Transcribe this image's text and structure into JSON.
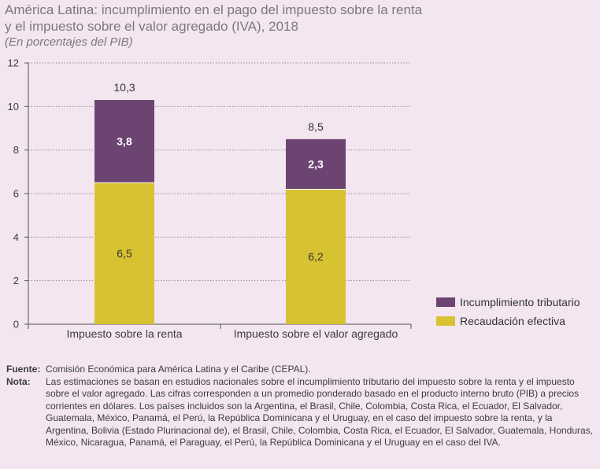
{
  "title_line1": "América Latina: incumplimiento en el pago del impuesto sobre la renta",
  "title_line2": "y el impuesto sobre el valor agregado (IVA), 2018",
  "subtitle": "(En porcentajes del PIB)",
  "chart_data": {
    "type": "bar",
    "stacked": true,
    "categories": [
      "Impuesto sobre la renta",
      "Impuesto sobre el valor agregado"
    ],
    "series": [
      {
        "name": "Recaudación efectiva",
        "values": [
          6.5,
          6.2
        ],
        "labels": [
          "6,5",
          "6,2"
        ],
        "color": "#d8c232",
        "label_color": "#333333",
        "label_bold": false
      },
      {
        "name": "Incumplimiento tributario",
        "values": [
          3.8,
          2.3
        ],
        "labels": [
          "3,8",
          "2,3"
        ],
        "color": "#6b4472",
        "label_color": "#ffffff",
        "label_bold": true
      }
    ],
    "totals": [
      10.3,
      8.5
    ],
    "total_labels": [
      "10,3",
      "8,5"
    ],
    "ylim": [
      0,
      12
    ],
    "yticks": [
      0,
      2,
      4,
      6,
      8,
      10,
      12
    ],
    "grid": true,
    "legend_position": "bottom-right",
    "legend_order": [
      1,
      0
    ]
  },
  "notes": {
    "source_key": "Fuente",
    "source_text": "Comisión Económica para América Latina y el Caribe (CEPAL).",
    "note_key": "Nota",
    "note_text": "Las estimaciones se basan en estudios nacionales sobre el incumplimiento tributario del impuesto sobre la renta y el impuesto sobre el valor agregado. Las cifras corresponden a un promedio ponderado basado en el producto interno bruto (PIB) a precios corrientes en dólares. Los países incluidos son la Argentina, el Brasil, Chile, Colombia, Costa Rica, el Ecuador, El Salvador, Guatemala, México, Panamá, el Perú, la República Dominicana y el Uruguay, en el caso del impuesto sobre la renta, y la Argentina, Bolivia (Estado Plurinacional de), el Brasil, Chile, Colombia, Costa Rica, el Ecuador, El Salvador, Guatemala, Honduras, México, Nicaragua, Panamá, el Paraguay, el Perú, la República Dominicana y el Uruguay en el caso del IVA."
  }
}
